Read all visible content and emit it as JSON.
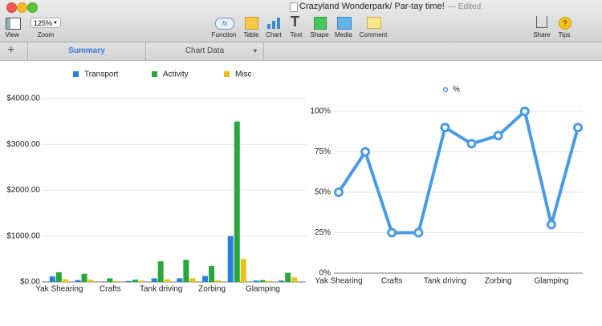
{
  "window": {
    "title": "Crazyland Wonderpark/ Par-tay time!",
    "status": "— Edited"
  },
  "toolbar": {
    "zoom": "125%",
    "function_icon": "fx",
    "items": [
      "View",
      "Zoom",
      "Function",
      "Table",
      "Chart",
      "Text",
      "Shape",
      "Media",
      "Comment",
      "Share",
      "Tips"
    ]
  },
  "tabs": [
    "Summary",
    "Chart Data"
  ],
  "chart_data": [
    {
      "type": "bar",
      "categories": [
        "Yak Shearing",
        null,
        "Crafts",
        null,
        "Tank driving",
        null,
        "Zorbing",
        null,
        "Glamping",
        null
      ],
      "series": [
        {
          "name": "Transport",
          "color": "#2a7fdc",
          "values": [
            120,
            40,
            10,
            20,
            80,
            80,
            130,
            1000,
            30,
            30
          ]
        },
        {
          "name": "Activity",
          "color": "#27a83a",
          "values": [
            210,
            180,
            80,
            50,
            450,
            480,
            350,
            3500,
            40,
            200
          ]
        },
        {
          "name": "Misc",
          "color": "#e8c216",
          "values": [
            60,
            50,
            20,
            30,
            60,
            80,
            40,
            500,
            20,
            100
          ]
        }
      ],
      "ylim": [
        0,
        4000
      ],
      "yticks": [
        {
          "value": 0,
          "label": "$0.00"
        },
        {
          "value": 1000,
          "label": "$1000.00"
        },
        {
          "value": 2000,
          "label": "$2000.00"
        },
        {
          "value": 3000,
          "label": "$3000.00"
        },
        {
          "value": 4000,
          "label": "$4000.00"
        }
      ],
      "grid": true,
      "legend": "top"
    },
    {
      "type": "line",
      "categories": [
        "Yak Shearing",
        null,
        "Crafts",
        null,
        "Tank driving",
        null,
        "Zorbing",
        null,
        "Glamping",
        null
      ],
      "series": [
        {
          "name": "%",
          "color": "#4a9be6",
          "values": [
            50,
            75,
            25,
            25,
            90,
            80,
            85,
            100,
            30,
            90
          ]
        }
      ],
      "ylim": [
        0,
        100
      ],
      "yticks": [
        {
          "value": 0,
          "label": "0%"
        },
        {
          "value": 25,
          "label": "25%"
        },
        {
          "value": 50,
          "label": "50%"
        },
        {
          "value": 75,
          "label": "75%"
        },
        {
          "value": 100,
          "label": "100%"
        }
      ],
      "grid": true,
      "legend": "top"
    }
  ]
}
